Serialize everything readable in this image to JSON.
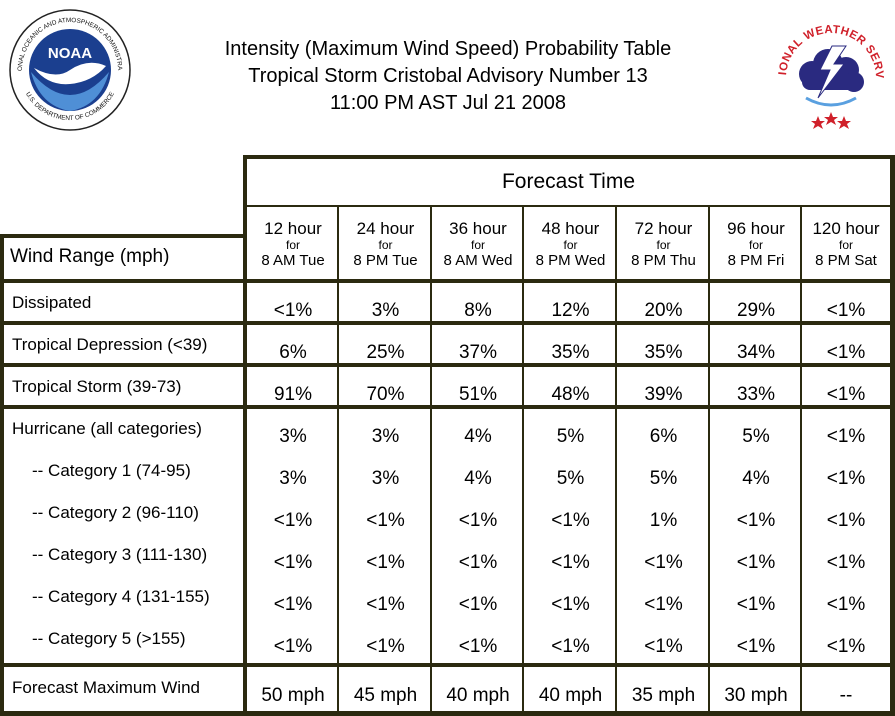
{
  "title": {
    "line1": "Intensity (Maximum Wind Speed) Probability Table",
    "line2": "Tropical Storm Cristobal Advisory Number 13",
    "line3": "11:00 PM AST Jul 21 2008"
  },
  "logos": {
    "noaa_text": "NOAA",
    "noaa_ring_top": "NATIONAL OCEANIC AND ATMOSPHERIC ADMINISTRATION",
    "noaa_ring_bottom": "U.S. DEPARTMENT OF COMMERCE",
    "nws_ring": "NATIONAL WEATHER SERVICE"
  },
  "table": {
    "forecast_time_label": "Forecast Time",
    "wind_range_label": "Wind Range (mph)",
    "columns": [
      {
        "hours": "12 hour",
        "for": "for",
        "when": "8 AM Tue"
      },
      {
        "hours": "24 hour",
        "for": "for",
        "when": "8 PM Tue"
      },
      {
        "hours": "36 hour",
        "for": "for",
        "when": "8 AM Wed"
      },
      {
        "hours": "48 hour",
        "for": "for",
        "when": "8 PM Wed"
      },
      {
        "hours": "72 hour",
        "for": "for",
        "when": "8 PM Thu"
      },
      {
        "hours": "96 hour",
        "for": "for",
        "when": "8 PM Fri"
      },
      {
        "hours": "120 hour",
        "for": "for",
        "when": "8 PM Sat"
      }
    ],
    "rows": [
      {
        "label": "Dissipated",
        "values": [
          "<1%",
          "3%",
          "8%",
          "12%",
          "20%",
          "29%",
          "<1%"
        ]
      },
      {
        "label": "Tropical Depression (<39)",
        "values": [
          "6%",
          "25%",
          "37%",
          "35%",
          "35%",
          "34%",
          "<1%"
        ]
      },
      {
        "label": "Tropical Storm (39-73)",
        "values": [
          "91%",
          "70%",
          "51%",
          "48%",
          "39%",
          "33%",
          "<1%"
        ]
      },
      {
        "label": "Hurricane (all categories)",
        "values": [
          "3%",
          "3%",
          "4%",
          "5%",
          "6%",
          "5%",
          "<1%"
        ]
      },
      {
        "label": "-- Category 1 (74-95)",
        "values": [
          "3%",
          "3%",
          "4%",
          "5%",
          "5%",
          "4%",
          "<1%"
        ]
      },
      {
        "label": "-- Category 2 (96-110)",
        "values": [
          "<1%",
          "<1%",
          "<1%",
          "<1%",
          "1%",
          "<1%",
          "<1%"
        ]
      },
      {
        "label": "-- Category 3 (111-130)",
        "values": [
          "<1%",
          "<1%",
          "<1%",
          "<1%",
          "<1%",
          "<1%",
          "<1%"
        ]
      },
      {
        "label": "-- Category 4 (131-155)",
        "values": [
          "<1%",
          "<1%",
          "<1%",
          "<1%",
          "<1%",
          "<1%",
          "<1%"
        ]
      },
      {
        "label": "-- Category 5 (>155)",
        "values": [
          "<1%",
          "<1%",
          "<1%",
          "<1%",
          "<1%",
          "<1%",
          "<1%"
        ]
      },
      {
        "label": "Forecast Maximum Wind",
        "values": [
          "50 mph",
          "45 mph",
          "40 mph",
          "40 mph",
          "35 mph",
          "30 mph",
          "--"
        ]
      }
    ]
  },
  "colors": {
    "border": "#2b2a10",
    "noaa_blue": "#1b3f8f",
    "nws_red": "#d0202a"
  }
}
